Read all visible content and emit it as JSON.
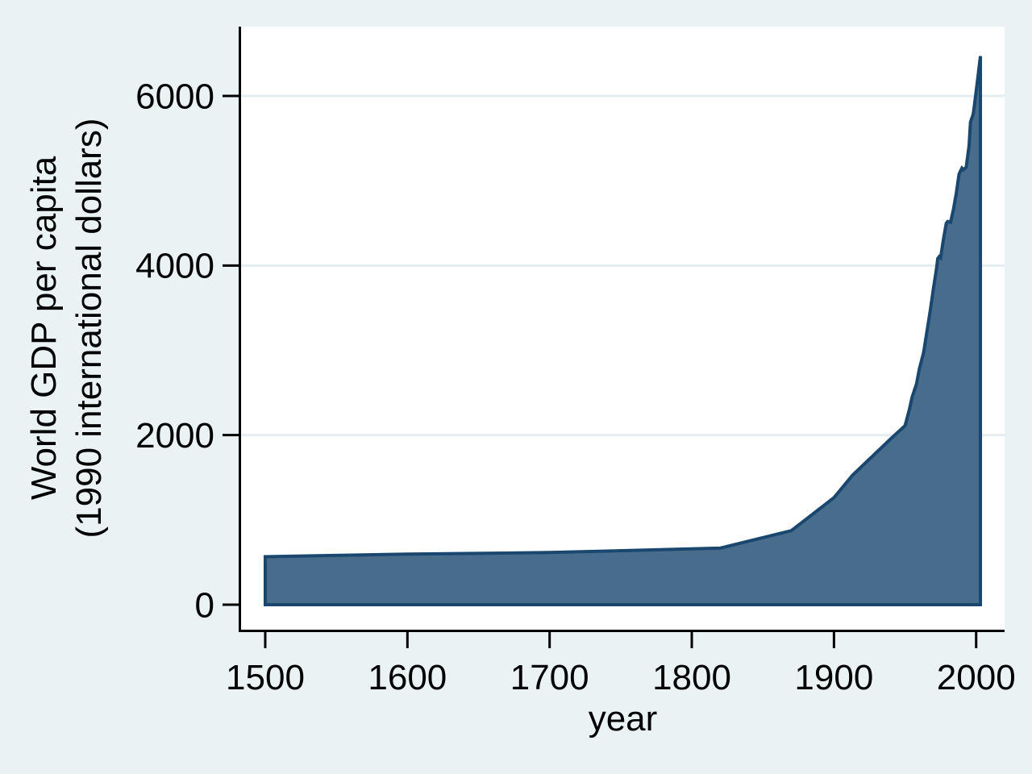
{
  "figure": {
    "background_color": "#EAF2F3",
    "plot_background_color": "#FFFFFF",
    "grid_color": "#E4EDF1",
    "axis_color": "#000000",
    "text_color": "#000000"
  },
  "chart_data": {
    "type": "area",
    "title": "",
    "xlabel": "year",
    "ylabel_line1": "World GDP per capita",
    "ylabel_line2": "(1990 international dollars)",
    "legend": "none",
    "grid": "horizontal gridlines at 2000, 4000, 6000",
    "xlim": [
      1483,
      2020
    ],
    "ylim": [
      -295,
      6818
    ],
    "x_ticks": [
      1500,
      1600,
      1700,
      1800,
      1900,
      2000
    ],
    "y_ticks": [
      0,
      2000,
      4000,
      6000
    ],
    "y_grid_ticks": [
      2000,
      4000,
      6000
    ],
    "area_fill_color": "#486C8C",
    "area_line_color": "#1A476F",
    "baseline_value": 0,
    "series": [
      {
        "name": "World GDP per capita (1990 international dollars)",
        "points": [
          [
            1500,
            566
          ],
          [
            1600,
            596
          ],
          [
            1700,
            615
          ],
          [
            1820,
            667
          ],
          [
            1870,
            873
          ],
          [
            1900,
            1262
          ],
          [
            1913,
            1526
          ],
          [
            1940,
            1958
          ],
          [
            1950,
            2111
          ],
          [
            1953,
            2300
          ],
          [
            1955,
            2450
          ],
          [
            1958,
            2600
          ],
          [
            1960,
            2777
          ],
          [
            1963,
            2970
          ],
          [
            1965,
            3180
          ],
          [
            1968,
            3500
          ],
          [
            1970,
            3736
          ],
          [
            1972,
            3950
          ],
          [
            1973,
            4083
          ],
          [
            1974,
            4105
          ],
          [
            1975,
            4091
          ],
          [
            1977,
            4310
          ],
          [
            1979,
            4500
          ],
          [
            1980,
            4520
          ],
          [
            1982,
            4510
          ],
          [
            1984,
            4660
          ],
          [
            1986,
            4850
          ],
          [
            1988,
            5080
          ],
          [
            1990,
            5149
          ],
          [
            1991,
            5130
          ],
          [
            1993,
            5160
          ],
          [
            1995,
            5410
          ],
          [
            1996,
            5690
          ],
          [
            1998,
            5790
          ],
          [
            2000,
            6055
          ],
          [
            2001,
            6190
          ],
          [
            2003,
            6470
          ]
        ]
      }
    ]
  }
}
